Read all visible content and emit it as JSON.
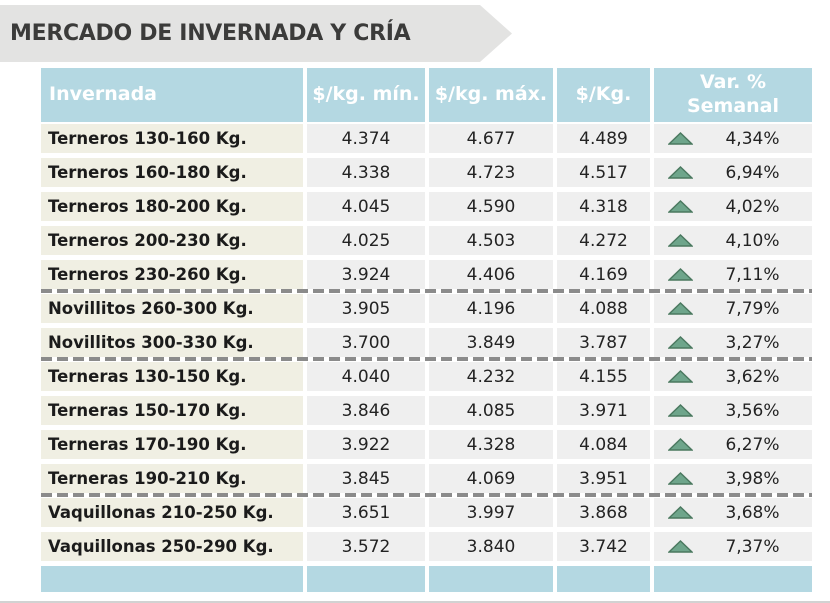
{
  "title": "MERCADO DE INVERNADA Y CRÍA",
  "colors": {
    "banner_gray": "#e3e3e2",
    "header_blue": "#b4d8e2",
    "label_beige": "#f0efe3",
    "value_cell_gray": "#efefef",
    "dashed_separator_gray": "#8b8b8b",
    "trend_up_fill": "#6ea58b",
    "trend_up_stroke": "#4a785f"
  },
  "table": {
    "columns": [
      "Invernada",
      "$/kg. mín.",
      "$/kg. máx.",
      "$/Kg.",
      "Var. %\nSemanal"
    ],
    "rows": [
      {
        "label": "Terneros 130-160 Kg.",
        "min": "4.374",
        "max": "4.677",
        "avg": "4.489",
        "trend": "up",
        "var": "4,34%",
        "separator_after": false
      },
      {
        "label": "Terneros 160-180 Kg.",
        "min": "4.338",
        "max": "4.723",
        "avg": "4.517",
        "trend": "up",
        "var": "6,94%",
        "separator_after": false
      },
      {
        "label": "Terneros 180-200 Kg.",
        "min": "4.045",
        "max": "4.590",
        "avg": "4.318",
        "trend": "up",
        "var": "4,02%",
        "separator_after": false
      },
      {
        "label": "Terneros 200-230 Kg.",
        "min": "4.025",
        "max": "4.503",
        "avg": "4.272",
        "trend": "up",
        "var": "4,10%",
        "separator_after": false
      },
      {
        "label": "Terneros 230-260 Kg.",
        "min": "3.924",
        "max": "4.406",
        "avg": "4.169",
        "trend": "up",
        "var": "7,11%",
        "separator_after": true
      },
      {
        "label": "Novillitos 260-300 Kg.",
        "min": "3.905",
        "max": "4.196",
        "avg": "4.088",
        "trend": "up",
        "var": "7,79%",
        "separator_after": false
      },
      {
        "label": "Novillitos 300-330 Kg.",
        "min": "3.700",
        "max": "3.849",
        "avg": "3.787",
        "trend": "up",
        "var": "3,27%",
        "separator_after": true
      },
      {
        "label": "Terneras 130-150 Kg.",
        "min": "4.040",
        "max": "4.232",
        "avg": "4.155",
        "trend": "up",
        "var": "3,62%",
        "separator_after": false
      },
      {
        "label": "Terneras 150-170 Kg.",
        "min": "3.846",
        "max": "4.085",
        "avg": "3.971",
        "trend": "up",
        "var": "3,56%",
        "separator_after": false
      },
      {
        "label": "Terneras 170-190 Kg.",
        "min": "3.922",
        "max": "4.328",
        "avg": "4.084",
        "trend": "up",
        "var": "6,27%",
        "separator_after": false
      },
      {
        "label": "Terneras 190-210 Kg.",
        "min": "3.845",
        "max": "4.069",
        "avg": "3.951",
        "trend": "up",
        "var": "3,98%",
        "separator_after": true
      },
      {
        "label": "Vaquillonas 210-250 Kg.",
        "min": "3.651",
        "max": "3.997",
        "avg": "3.868",
        "trend": "up",
        "var": "3,68%",
        "separator_after": false
      },
      {
        "label": "Vaquillonas 250-290 Kg.",
        "min": "3.572",
        "max": "3.840",
        "avg": "3.742",
        "trend": "up",
        "var": "7,37%",
        "separator_after": false
      }
    ]
  },
  "chart_data": {
    "type": "table",
    "title": "MERCADO DE INVERNADA Y CRÍA",
    "columns": [
      "Invernada",
      "$/kg. mín.",
      "$/kg. máx.",
      "$/Kg.",
      "Var. % Semanal"
    ],
    "rows": [
      [
        "Terneros 130-160 Kg.",
        "4.374",
        "4.677",
        "4.489",
        "▲ 4,34%"
      ],
      [
        "Terneros 160-180 Kg.",
        "4.338",
        "4.723",
        "4.517",
        "▲ 6,94%"
      ],
      [
        "Terneros 180-200 Kg.",
        "4.045",
        "4.590",
        "4.318",
        "▲ 4,02%"
      ],
      [
        "Terneros 200-230 Kg.",
        "4.025",
        "4.503",
        "4.272",
        "▲ 4,10%"
      ],
      [
        "Terneros 230-260 Kg.",
        "3.924",
        "4.406",
        "4.169",
        "▲ 7,11%"
      ],
      [
        "Novillitos 260-300 Kg.",
        "3.905",
        "4.196",
        "4.088",
        "▲ 7,79%"
      ],
      [
        "Novillitos 300-330 Kg.",
        "3.700",
        "3.849",
        "3.787",
        "▲ 3,27%"
      ],
      [
        "Terneras 130-150 Kg.",
        "4.040",
        "4.232",
        "4.155",
        "▲ 3,62%"
      ],
      [
        "Terneras 150-170 Kg.",
        "3.846",
        "4.085",
        "3.971",
        "▲ 3,56%"
      ],
      [
        "Terneras 170-190 Kg.",
        "3.922",
        "4.328",
        "4.084",
        "▲ 6,27%"
      ],
      [
        "Terneras 190-210 Kg.",
        "3.845",
        "4.069",
        "3.951",
        "▲ 3,98%"
      ],
      [
        "Vaquillonas 210-250 Kg.",
        "3.651",
        "3.997",
        "3.868",
        "▲ 3,68%"
      ],
      [
        "Vaquillonas 250-290 Kg.",
        "3.572",
        "3.840",
        "3.742",
        "▲ 7,37%"
      ]
    ]
  }
}
